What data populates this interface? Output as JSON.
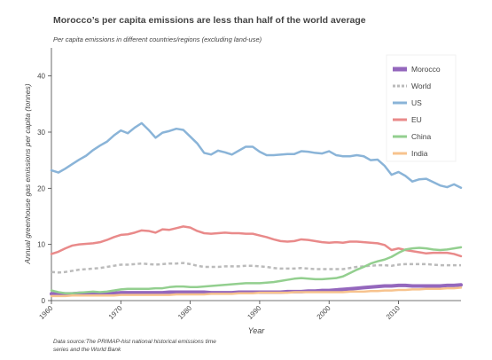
{
  "title": "Morocco’s per capita emissions are less than half of the world average",
  "subtitle": "Per capita emissions in different countries/regions (excluding land-use)",
  "source": "Data source:The PRIMAP-hist national historical emissions time series and the World Bank",
  "chart_data": {
    "type": "line",
    "xlabel": "Year",
    "ylabel": "Annual greenhouse gas emissions per capita (tonnes)",
    "xlim": [
      1960,
      2019
    ],
    "ylim": [
      0,
      45
    ],
    "xticks": [
      "1960",
      "1970",
      "1980",
      "1990",
      "2000",
      "2010"
    ],
    "yticks": [
      "0",
      "10",
      "20",
      "30",
      "40"
    ],
    "grid": false,
    "legend_position": "top-right",
    "x": [
      1960,
      1961,
      1962,
      1963,
      1964,
      1965,
      1966,
      1967,
      1968,
      1969,
      1970,
      1971,
      1972,
      1973,
      1974,
      1975,
      1976,
      1977,
      1978,
      1979,
      1980,
      1981,
      1982,
      1983,
      1984,
      1985,
      1986,
      1987,
      1988,
      1989,
      1990,
      1991,
      1992,
      1993,
      1994,
      1995,
      1996,
      1997,
      1998,
      1999,
      2000,
      2001,
      2002,
      2003,
      2004,
      2005,
      2006,
      2007,
      2008,
      2009,
      2010,
      2011,
      2012,
      2013,
      2014,
      2015,
      2016,
      2017,
      2018,
      2019
    ],
    "series": [
      {
        "name": "Morocco",
        "color": "#9467bd",
        "dash": false,
        "width": 4,
        "values": [
          1.2,
          1.2,
          1.2,
          1.2,
          1.3,
          1.3,
          1.3,
          1.3,
          1.3,
          1.3,
          1.4,
          1.4,
          1.4,
          1.4,
          1.4,
          1.4,
          1.4,
          1.5,
          1.5,
          1.5,
          1.5,
          1.5,
          1.5,
          1.4,
          1.4,
          1.4,
          1.4,
          1.5,
          1.5,
          1.5,
          1.5,
          1.5,
          1.5,
          1.5,
          1.6,
          1.6,
          1.6,
          1.7,
          1.7,
          1.8,
          1.8,
          1.9,
          2.0,
          2.1,
          2.2,
          2.3,
          2.4,
          2.5,
          2.6,
          2.6,
          2.7,
          2.7,
          2.6,
          2.6,
          2.6,
          2.6,
          2.6,
          2.7,
          2.7,
          2.8
        ]
      },
      {
        "name": "World",
        "color": "#bbbbbb",
        "dash": true,
        "width": 2.5,
        "values": [
          5.1,
          5.0,
          5.1,
          5.3,
          5.5,
          5.6,
          5.7,
          5.8,
          6.0,
          6.2,
          6.4,
          6.4,
          6.5,
          6.6,
          6.5,
          6.4,
          6.5,
          6.6,
          6.6,
          6.7,
          6.5,
          6.2,
          6.0,
          6.0,
          6.0,
          6.1,
          6.1,
          6.1,
          6.2,
          6.2,
          6.1,
          6.0,
          5.8,
          5.7,
          5.7,
          5.7,
          5.8,
          5.7,
          5.6,
          5.6,
          5.6,
          5.6,
          5.6,
          5.8,
          6.0,
          6.1,
          6.2,
          6.3,
          6.3,
          6.2,
          6.4,
          6.5,
          6.5,
          6.5,
          6.5,
          6.4,
          6.3,
          6.3,
          6.3,
          6.3
        ]
      },
      {
        "name": "US",
        "color": "#8ab4d8",
        "dash": false,
        "width": 2.5,
        "values": [
          23.2,
          22.8,
          23.5,
          24.3,
          25.1,
          25.8,
          26.8,
          27.6,
          28.3,
          29.4,
          30.3,
          29.8,
          30.8,
          31.6,
          30.4,
          29.0,
          29.9,
          30.2,
          30.6,
          30.4,
          29.2,
          28.0,
          26.3,
          26.0,
          26.7,
          26.4,
          26.0,
          26.7,
          27.4,
          27.4,
          26.5,
          25.9,
          25.9,
          26.0,
          26.1,
          26.1,
          26.6,
          26.5,
          26.3,
          26.2,
          26.6,
          25.9,
          25.7,
          25.7,
          25.9,
          25.7,
          25.0,
          25.1,
          24.0,
          22.4,
          22.9,
          22.2,
          21.2,
          21.6,
          21.7,
          21.1,
          20.5,
          20.2,
          20.7,
          20.1
        ]
      },
      {
        "name": "EU",
        "color": "#e98a8a",
        "dash": false,
        "width": 2.5,
        "values": [
          8.3,
          8.7,
          9.3,
          9.8,
          10.0,
          10.1,
          10.2,
          10.4,
          10.8,
          11.3,
          11.7,
          11.8,
          12.1,
          12.5,
          12.4,
          12.1,
          12.7,
          12.6,
          12.9,
          13.2,
          13.0,
          12.4,
          12.0,
          11.9,
          12.0,
          12.1,
          12.0,
          12.0,
          11.9,
          11.9,
          11.6,
          11.3,
          10.9,
          10.6,
          10.5,
          10.6,
          10.9,
          10.8,
          10.6,
          10.4,
          10.3,
          10.4,
          10.3,
          10.5,
          10.5,
          10.4,
          10.3,
          10.2,
          9.9,
          9.0,
          9.3,
          9.0,
          8.8,
          8.6,
          8.4,
          8.5,
          8.5,
          8.5,
          8.3,
          7.9
        ]
      },
      {
        "name": "China",
        "color": "#93cf8f",
        "dash": false,
        "width": 2.5,
        "values": [
          1.8,
          1.5,
          1.3,
          1.3,
          1.4,
          1.5,
          1.6,
          1.5,
          1.6,
          1.8,
          2.0,
          2.1,
          2.1,
          2.1,
          2.1,
          2.2,
          2.2,
          2.4,
          2.5,
          2.5,
          2.4,
          2.4,
          2.5,
          2.6,
          2.7,
          2.8,
          2.9,
          3.0,
          3.1,
          3.1,
          3.1,
          3.2,
          3.3,
          3.5,
          3.7,
          3.9,
          4.0,
          3.9,
          3.8,
          3.8,
          3.9,
          4.0,
          4.3,
          4.9,
          5.5,
          6.0,
          6.6,
          7.0,
          7.3,
          7.8,
          8.5,
          9.1,
          9.3,
          9.4,
          9.3,
          9.1,
          9.0,
          9.1,
          9.3,
          9.5
        ]
      },
      {
        "name": "India",
        "color": "#f7c38e",
        "dash": false,
        "width": 2.5,
        "values": [
          0.8,
          0.8,
          0.8,
          0.9,
          0.9,
          0.9,
          0.9,
          0.9,
          0.9,
          0.9,
          1.0,
          1.0,
          1.0,
          1.0,
          1.0,
          1.0,
          1.0,
          1.0,
          1.1,
          1.1,
          1.1,
          1.1,
          1.1,
          1.2,
          1.2,
          1.2,
          1.2,
          1.3,
          1.3,
          1.3,
          1.4,
          1.4,
          1.4,
          1.4,
          1.4,
          1.5,
          1.5,
          1.5,
          1.5,
          1.5,
          1.5,
          1.5,
          1.5,
          1.6,
          1.6,
          1.6,
          1.7,
          1.7,
          1.8,
          1.8,
          1.9,
          1.9,
          2.0,
          2.0,
          2.1,
          2.1,
          2.1,
          2.2,
          2.2,
          2.3
        ]
      }
    ]
  }
}
